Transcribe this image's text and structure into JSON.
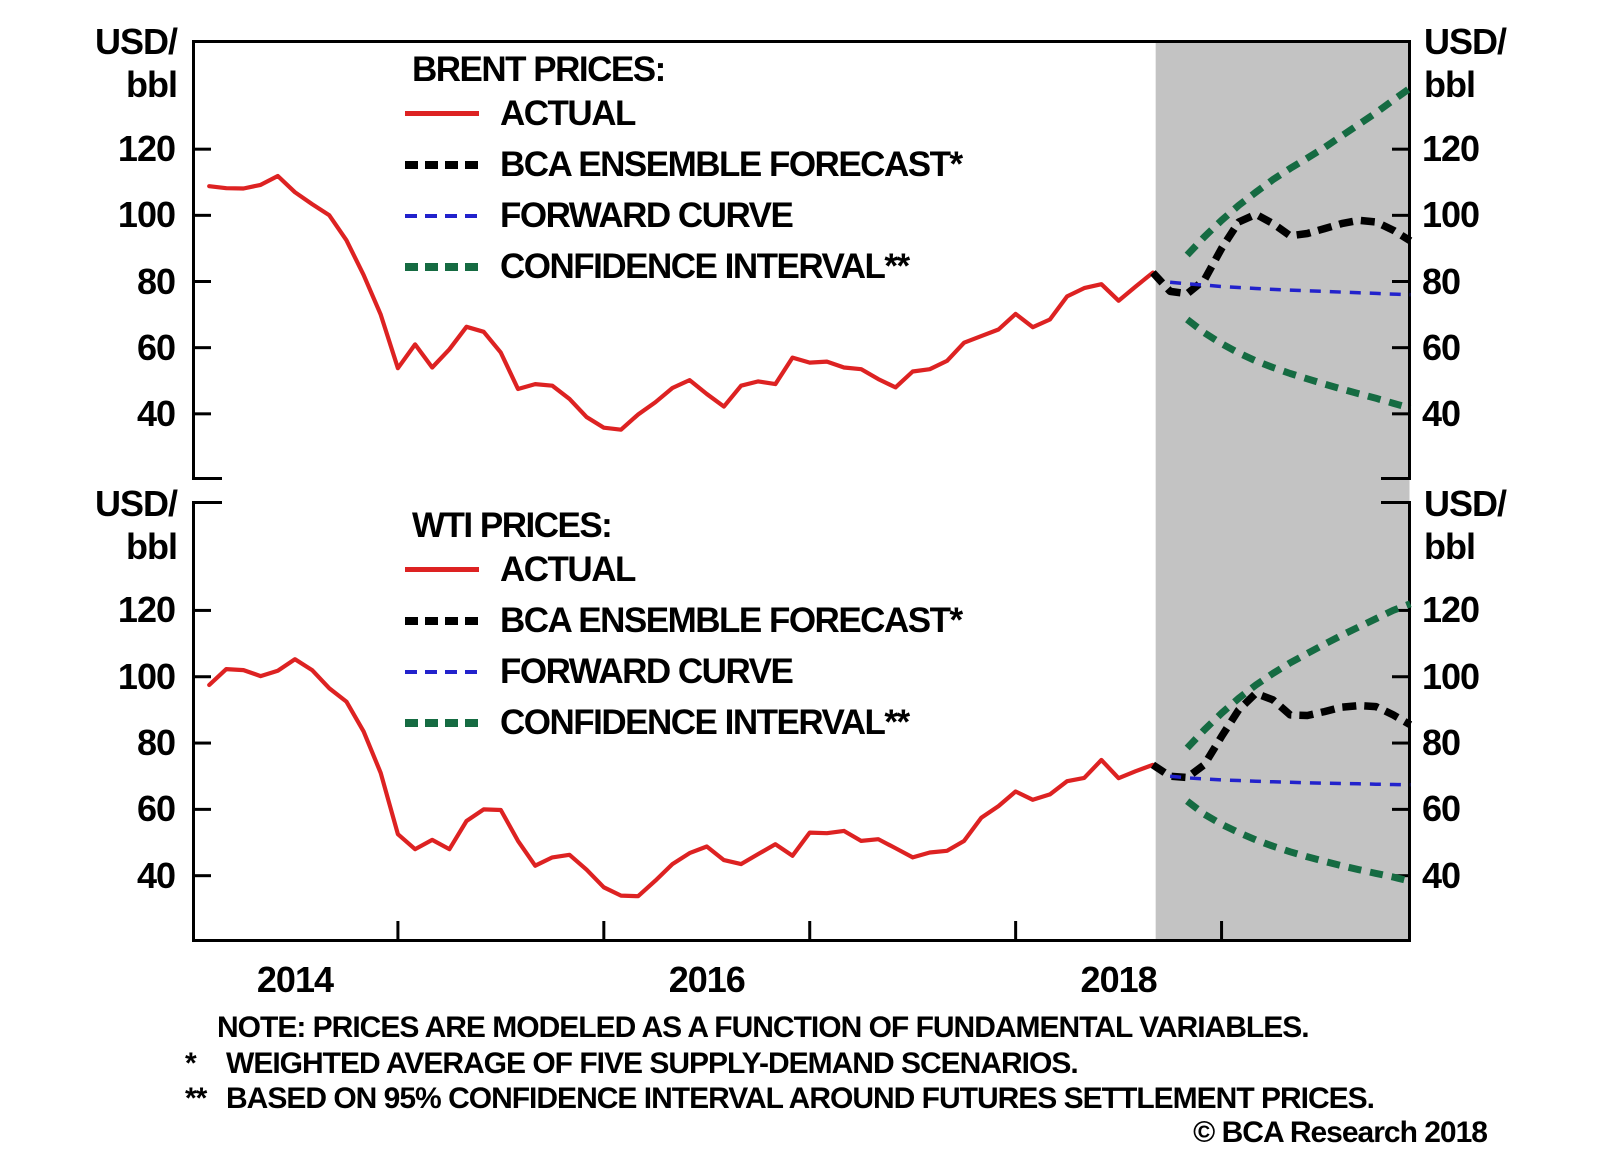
{
  "figure": {
    "unit_label_line1": "USD/",
    "unit_label_line2": "bbl"
  },
  "x_axis": {
    "tick_years": [
      2015,
      2016,
      2017,
      2018,
      2019
    ],
    "labels": [
      {
        "text": "2014",
        "t": 2014.5
      },
      {
        "text": "2016",
        "t": 2016.5
      },
      {
        "text": "2018",
        "t": 2018.5
      }
    ]
  },
  "legend": {
    "items": [
      {
        "label": "ACTUAL",
        "color": "#dd2222",
        "style": "solid"
      },
      {
        "label": "BCA ENSEMBLE FORECAST*",
        "color": "#000000",
        "style": "dashed"
      },
      {
        "label": "FORWARD CURVE",
        "color": "#2222cc",
        "style": "dashed-thin"
      },
      {
        "label": "CONFIDENCE INTERVAL**",
        "color": "#156b42",
        "style": "dashed"
      }
    ]
  },
  "notes": [
    {
      "marker": "",
      "text": "NOTE: PRICES ARE MODELED AS A FUNCTION OF FUNDAMENTAL VARIABLES."
    },
    {
      "marker": "*",
      "text": "WEIGHTED AVERAGE OF FIVE SUPPLY-DEMAND SCENARIOS."
    },
    {
      "marker": "**",
      "text": "BASED ON 95% CONFIDENCE INTERVAL AROUND FUTURES SETTLEMENT PRICES."
    }
  ],
  "footer": {
    "copyright": "© BCA Research 2018"
  },
  "colors": {
    "actual": "#dd2222",
    "ensemble_forecast": "#000000",
    "forward_curve": "#2222cc",
    "confidence_interval": "#156b42",
    "forecast_region": "#c3c3c3",
    "axis": "#000000"
  },
  "chart_data": [
    {
      "type": "line",
      "title": "BRENT PRICES:",
      "ylabel": "USD/bbl",
      "ylim": [
        20,
        153
      ],
      "yticks": [
        40,
        60,
        80,
        100,
        120
      ],
      "xlim": [
        2014.0,
        2019.92
      ],
      "forecast_start": 2018.68,
      "series": [
        {
          "name": "ACTUAL",
          "color": "#dd2222",
          "style": "solid",
          "t0": 2014.0833,
          "dt": 0.08333,
          "values": [
            108.8,
            108.2,
            108.1,
            109.2,
            111.9,
            107,
            103.4,
            100,
            92.5,
            82,
            70,
            53.8,
            61,
            54,
            59.5,
            66.3,
            64.8,
            58.5,
            47.5,
            49,
            48.5,
            44.5,
            39,
            35.8,
            35.2,
            39.8,
            43.5,
            47.8,
            50.2,
            46,
            42.2,
            48.5,
            49.8,
            49,
            57,
            55.5,
            55.8,
            54,
            53.5,
            50.5,
            48,
            52.8,
            53.5,
            56,
            61.5,
            63.5,
            65.5,
            70.2,
            66.2,
            68.5,
            75.5,
            78,
            79.2,
            74.2,
            78.5,
            82.7
          ]
        },
        {
          "name": "BCA ENSEMBLE FORECAST*",
          "color": "#000000",
          "style": "dashed",
          "t0": 2018.6667,
          "dt": 0.08333,
          "values": [
            82.7,
            77,
            76.3,
            80.5,
            90,
            98,
            100.3,
            97.5,
            93.8,
            94.5,
            96,
            97.5,
            98.5,
            98,
            95.5,
            92.3
          ]
        },
        {
          "name": "FORWARD CURVE",
          "color": "#2222cc",
          "style": "dashed-thin",
          "t0": 2018.75,
          "dt": 0.08333,
          "values": [
            79.8,
            79.3,
            78.9,
            78.5,
            78.2,
            77.9,
            77.6,
            77.4,
            77.2,
            77,
            76.8,
            76.6,
            76.4,
            76.2,
            76
          ]
        },
        {
          "name": "CONFIDENCE INTERVAL** UPPER",
          "color": "#156b42",
          "style": "dashed-green",
          "t0": 2018.8333,
          "dt": 0.08333,
          "values": [
            88,
            93.5,
            98.5,
            103,
            107,
            110.8,
            114.2,
            117.3,
            120.5,
            124,
            127.5,
            131,
            134.8,
            138.5
          ]
        },
        {
          "name": "CONFIDENCE INTERVAL** LOWER",
          "color": "#156b42",
          "style": "dashed-green",
          "t0": 2018.8333,
          "dt": 0.08333,
          "values": [
            68.5,
            64.5,
            61.2,
            58.4,
            56,
            54,
            52.2,
            50.6,
            49,
            47.5,
            46.1,
            44.7,
            43.2,
            41.7
          ]
        }
      ]
    },
    {
      "type": "line",
      "title": "WTI PRICES:",
      "ylabel": "USD/bbl",
      "ylim": [
        20,
        153
      ],
      "yticks": [
        40,
        60,
        80,
        100,
        120
      ],
      "xlim": [
        2014.0,
        2019.92
      ],
      "forecast_start": 2018.68,
      "series": [
        {
          "name": "ACTUAL",
          "color": "#dd2222",
          "style": "solid",
          "t0": 2014.0833,
          "dt": 0.08333,
          "values": [
            97.5,
            102.3,
            102,
            100.2,
            101.8,
            105.3,
            102,
            96.5,
            92.5,
            83.5,
            71,
            52.5,
            48,
            50.8,
            48,
            56.5,
            60,
            59.8,
            50.5,
            43,
            45.5,
            46.3,
            41.8,
            36.5,
            34,
            33.8,
            38.5,
            43.5,
            46.8,
            48.8,
            44.7,
            43.5,
            46.5,
            49.5,
            46,
            53,
            52.8,
            53.5,
            50.5,
            51,
            48.3,
            45.5,
            47,
            47.5,
            50.5,
            57.5,
            61,
            65.4,
            62.9,
            64.5,
            68.5,
            69.5,
            74.9,
            69.4,
            71.5,
            73.4
          ]
        },
        {
          "name": "BCA ENSEMBLE FORECAST*",
          "color": "#000000",
          "style": "dashed",
          "t0": 2018.6667,
          "dt": 0.08333,
          "values": [
            73.4,
            70,
            69.6,
            73.5,
            82,
            90,
            95,
            93,
            88.5,
            88.3,
            89.5,
            90.8,
            91.3,
            91,
            88.5,
            85.5
          ]
        },
        {
          "name": "FORWARD CURVE",
          "color": "#2222cc",
          "style": "dashed-thin",
          "t0": 2018.75,
          "dt": 0.08333,
          "values": [
            70,
            69.5,
            69.2,
            68.9,
            68.7,
            68.5,
            68.3,
            68.2,
            68,
            67.9,
            67.8,
            67.7,
            67.6,
            67.5,
            67.4
          ]
        },
        {
          "name": "CONFIDENCE INTERVAL** UPPER",
          "color": "#156b42",
          "style": "dashed-green",
          "t0": 2018.8333,
          "dt": 0.08333,
          "values": [
            78.5,
            84,
            89,
            93.5,
            97.5,
            101,
            104.2,
            107,
            109.8,
            112.5,
            115,
            117.5,
            120,
            122
          ]
        },
        {
          "name": "CONFIDENCE INTERVAL** LOWER",
          "color": "#156b42",
          "style": "dashed-green",
          "t0": 2018.8333,
          "dt": 0.08333,
          "values": [
            62.5,
            58.5,
            55.5,
            53,
            50.8,
            48.9,
            47.2,
            45.7,
            44.3,
            43,
            41.8,
            40.7,
            39.6,
            38.3
          ]
        }
      ]
    }
  ]
}
